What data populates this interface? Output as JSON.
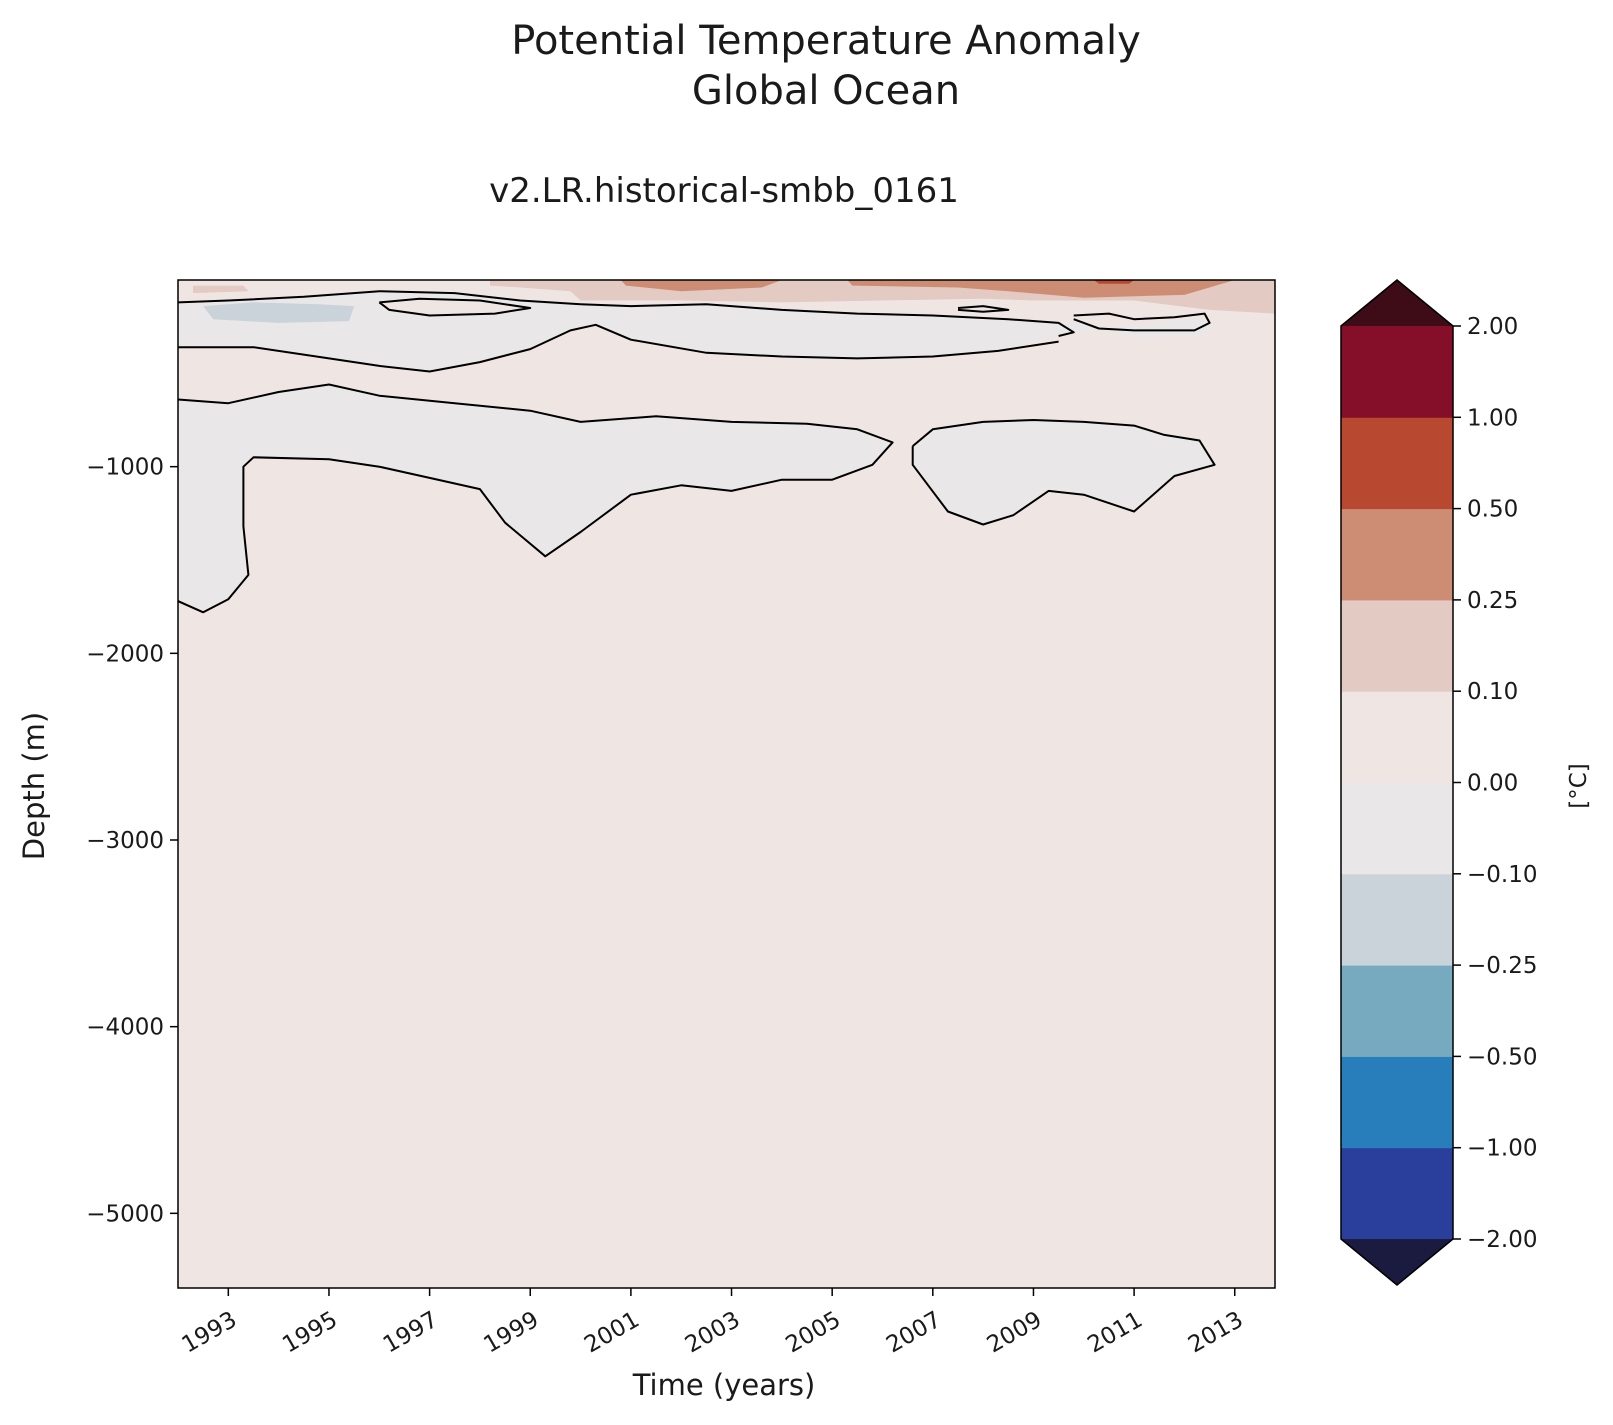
{
  "chart_data": {
    "type": "heatmap",
    "title": "Potential Temperature Anomaly",
    "title_line2": "Global Ocean",
    "subtitle": "v2.LR.historical-smbb_0161",
    "xlabel": "Time (years)",
    "ylabel": "Depth (m)",
    "xlim": [
      1992.0,
      2013.8
    ],
    "ylim": [
      -5400,
      0
    ],
    "x_ticks": [
      1993,
      1995,
      1997,
      1999,
      2001,
      2003,
      2005,
      2007,
      2009,
      2011,
      2013
    ],
    "y_ticks": [
      -1000,
      -2000,
      -3000,
      -4000,
      -5000
    ],
    "x_tick_labels": [
      "1993",
      "1995",
      "1997",
      "1999",
      "2001",
      "2003",
      "2005",
      "2007",
      "2009",
      "2011",
      "2013"
    ],
    "y_tick_labels": [
      "−1000",
      "−2000",
      "−3000",
      "−4000",
      "−5000"
    ],
    "background_level": "0.00 to 0.10",
    "colorbar": {
      "label": "[°C]",
      "extend": "both",
      "levels": [
        -2.0,
        -1.0,
        -0.5,
        -0.25,
        -0.1,
        0.0,
        0.1,
        0.25,
        0.5,
        1.0,
        2.0
      ],
      "tick_labels": [
        "−2.00",
        "−1.00",
        "−0.50",
        "−0.25",
        "−0.10",
        "0.00",
        "0.10",
        "0.25",
        "0.50",
        "1.00",
        "2.00"
      ],
      "colors": [
        "#2a3f9b",
        "#287ebb",
        "#78aabf",
        "#c9d3d9",
        "#e9e7e7",
        "#efe6e4",
        "#e3cac3",
        "#cd8d75",
        "#b84930",
        "#850f28"
      ],
      "under_color": "#1b1b40",
      "over_color": "#3d0c16"
    },
    "regions": [
      {
        "name": "negative anomaly (-0.10 to 0.00) upper band",
        "fill": "#e9e7e7",
        "points": [
          [
            1992.0,
            -120
          ],
          [
            1993.0,
            -110
          ],
          [
            1994.5,
            -90
          ],
          [
            1996.0,
            -60
          ],
          [
            1997.5,
            -70
          ],
          [
            1998.8,
            -110
          ],
          [
            2000.0,
            -130
          ],
          [
            2001.0,
            -140
          ],
          [
            2002.5,
            -130
          ],
          [
            2004.0,
            -160
          ],
          [
            2005.5,
            -180
          ],
          [
            2007.0,
            -190
          ],
          [
            2008.5,
            -210
          ],
          [
            2009.8,
            -230
          ],
          [
            2010.5,
            -250
          ],
          [
            2011.5,
            -230
          ],
          [
            2012.3,
            -200
          ],
          [
            2012.6,
            -260
          ],
          [
            2012.3,
            -300
          ],
          [
            2011.0,
            -310
          ],
          [
            2010.3,
            -260
          ],
          [
            2009.5,
            -300
          ],
          [
            2008.3,
            -380
          ],
          [
            2007.0,
            -410
          ],
          [
            2005.5,
            -420
          ],
          [
            2004.0,
            -410
          ],
          [
            2002.5,
            -390
          ],
          [
            2001.0,
            -320
          ],
          [
            2000.3,
            -240
          ],
          [
            1999.8,
            -270
          ],
          [
            1999.0,
            -370
          ],
          [
            1998.0,
            -440
          ],
          [
            1997.0,
            -490
          ],
          [
            1996.0,
            -460
          ],
          [
            1995.0,
            -420
          ],
          [
            1993.5,
            -360
          ],
          [
            1992.0,
            -360
          ]
        ]
      },
      {
        "name": "warm pocket inside upper band",
        "fill": "#efe6e4",
        "points": [
          [
            1996.0,
            -120
          ],
          [
            1996.8,
            -100
          ],
          [
            1998.0,
            -110
          ],
          [
            1999.0,
            -150
          ],
          [
            1998.3,
            -180
          ],
          [
            1997.0,
            -190
          ],
          [
            1996.2,
            -160
          ]
        ]
      },
      {
        "name": "mid-depth negative anomaly west",
        "fill": "#e9e7e7",
        "points": [
          [
            1992.0,
            -640
          ],
          [
            1993.0,
            -660
          ],
          [
            1994.0,
            -600
          ],
          [
            1995.0,
            -560
          ],
          [
            1996.0,
            -620
          ],
          [
            1997.5,
            -660
          ],
          [
            1999.0,
            -700
          ],
          [
            2000.0,
            -760
          ],
          [
            2001.5,
            -730
          ],
          [
            2003.0,
            -760
          ],
          [
            2004.5,
            -770
          ],
          [
            2005.5,
            -800
          ],
          [
            2006.2,
            -870
          ],
          [
            2005.8,
            -990
          ],
          [
            2005.0,
            -1070
          ],
          [
            2004.0,
            -1070
          ],
          [
            2003.0,
            -1130
          ],
          [
            2002.0,
            -1100
          ],
          [
            2001.0,
            -1150
          ],
          [
            2000.0,
            -1350
          ],
          [
            1999.3,
            -1480
          ],
          [
            1998.5,
            -1300
          ],
          [
            1998.0,
            -1120
          ],
          [
            1997.0,
            -1060
          ],
          [
            1996.0,
            -1000
          ],
          [
            1995.0,
            -960
          ],
          [
            1993.5,
            -950
          ],
          [
            1993.3,
            -1000
          ],
          [
            1993.3,
            -1320
          ],
          [
            1993.4,
            -1580
          ],
          [
            1993.0,
            -1710
          ],
          [
            1992.5,
            -1780
          ],
          [
            1992.0,
            -1720
          ]
        ]
      },
      {
        "name": "mid-depth negative anomaly east",
        "fill": "#e9e7e7",
        "points": [
          [
            2006.6,
            -890
          ],
          [
            2007.0,
            -800
          ],
          [
            2008.0,
            -760
          ],
          [
            2009.0,
            -750
          ],
          [
            2010.0,
            -760
          ],
          [
            2011.0,
            -780
          ],
          [
            2011.6,
            -830
          ],
          [
            2012.3,
            -860
          ],
          [
            2012.6,
            -990
          ],
          [
            2011.8,
            -1050
          ],
          [
            2011.0,
            -1240
          ],
          [
            2010.0,
            -1150
          ],
          [
            2009.3,
            -1130
          ],
          [
            2008.6,
            -1260
          ],
          [
            2008.0,
            -1310
          ],
          [
            2007.3,
            -1240
          ],
          [
            2006.6,
            -990
          ]
        ]
      },
      {
        "name": "light warm surface layer",
        "fill": "#e3cac3",
        "points": [
          [
            1998.2,
            0
          ],
          [
            2013.8,
            0
          ],
          [
            2013.8,
            -180
          ],
          [
            2012.5,
            -160
          ],
          [
            2011.0,
            -110
          ],
          [
            2009.0,
            -110
          ],
          [
            2008.0,
            -100
          ],
          [
            2006.0,
            -110
          ],
          [
            2004.0,
            -120
          ],
          [
            2002.0,
            -110
          ],
          [
            2000.0,
            -110
          ],
          [
            1999.8,
            -60
          ],
          [
            1998.8,
            -40
          ],
          [
            1998.2,
            -30
          ]
        ]
      },
      {
        "name": "small warm surface patch",
        "fill": "#e3cac3",
        "points": [
          [
            1992.3,
            -30
          ],
          [
            1993.3,
            -30
          ],
          [
            1993.4,
            -60
          ],
          [
            1992.3,
            -70
          ]
        ]
      },
      {
        "name": "moderate warm surface 2001-2004",
        "fill": "#cd8d75",
        "points": [
          [
            2000.8,
            0
          ],
          [
            2004.0,
            0
          ],
          [
            2003.6,
            -40
          ],
          [
            2002.0,
            -60
          ],
          [
            2000.9,
            -30
          ]
        ]
      },
      {
        "name": "moderate warm surface 2007-2013",
        "fill": "#cd8d75",
        "points": [
          [
            2005.3,
            0
          ],
          [
            2013.0,
            0
          ],
          [
            2012.0,
            -80
          ],
          [
            2010.0,
            -95
          ],
          [
            2008.5,
            -60
          ],
          [
            2007.5,
            -40
          ],
          [
            2005.4,
            -30
          ]
        ]
      },
      {
        "name": "strong warm surface 2010",
        "fill": "#b84930",
        "points": [
          [
            2010.2,
            0
          ],
          [
            2011.0,
            0
          ],
          [
            2010.9,
            -20
          ],
          [
            2010.3,
            -20
          ]
        ]
      },
      {
        "name": "cool patch 1993-1995",
        "fill": "#c9d3d9",
        "points": [
          [
            1992.5,
            -140
          ],
          [
            1993.5,
            -120
          ],
          [
            1994.8,
            -130
          ],
          [
            1995.5,
            -140
          ],
          [
            1995.4,
            -220
          ],
          [
            1994.0,
            -230
          ],
          [
            1992.7,
            -210
          ]
        ]
      }
    ],
    "contours": [
      [
        [
          1992.0,
          -360
        ],
        [
          1993.5,
          -360
        ],
        [
          1995.0,
          -420
        ],
        [
          1996.0,
          -460
        ],
        [
          1997.0,
          -490
        ],
        [
          1998.0,
          -440
        ],
        [
          1999.0,
          -370
        ],
        [
          1999.8,
          -270
        ],
        [
          2000.3,
          -240
        ],
        [
          2001.0,
          -320
        ],
        [
          2002.5,
          -390
        ],
        [
          2004.0,
          -410
        ],
        [
          2005.5,
          -420
        ],
        [
          2007.0,
          -410
        ],
        [
          2008.3,
          -380
        ],
        [
          2009.5,
          -330
        ]
      ],
      [
        [
          1992.0,
          -120
        ],
        [
          1993.0,
          -110
        ],
        [
          1994.5,
          -90
        ],
        [
          1996.0,
          -60
        ],
        [
          1997.5,
          -70
        ],
        [
          1998.8,
          -110
        ],
        [
          2000.0,
          -130
        ]
      ],
      [
        [
          1996.0,
          -120
        ],
        [
          1996.8,
          -100
        ],
        [
          1998.0,
          -110
        ],
        [
          1999.0,
          -150
        ],
        [
          1998.3,
          -180
        ],
        [
          1997.0,
          -190
        ],
        [
          1996.2,
          -160
        ],
        [
          1996.0,
          -120
        ]
      ],
      [
        [
          2000.0,
          -130
        ],
        [
          2001.0,
          -140
        ],
        [
          2002.5,
          -130
        ],
        [
          2004.0,
          -160
        ],
        [
          2005.5,
          -180
        ],
        [
          2007.0,
          -190
        ],
        [
          2008.5,
          -210
        ],
        [
          2009.5,
          -230
        ],
        [
          2009.8,
          -280
        ],
        [
          2009.5,
          -300
        ]
      ],
      [
        [
          2007.5,
          -150
        ],
        [
          2008.0,
          -140
        ],
        [
          2008.5,
          -160
        ],
        [
          2008.0,
          -170
        ],
        [
          2007.5,
          -160
        ]
      ],
      [
        [
          2009.8,
          -190
        ],
        [
          2010.5,
          -180
        ],
        [
          2011.0,
          -210
        ],
        [
          2011.8,
          -200
        ],
        [
          2012.4,
          -180
        ],
        [
          2012.5,
          -230
        ],
        [
          2012.2,
          -270
        ],
        [
          2011.0,
          -270
        ],
        [
          2010.3,
          -260
        ],
        [
          2009.8,
          -210
        ]
      ],
      [
        [
          1992.0,
          -640
        ],
        [
          1993.0,
          -660
        ],
        [
          1994.0,
          -600
        ],
        [
          1995.0,
          -560
        ],
        [
          1996.0,
          -620
        ],
        [
          1997.5,
          -660
        ],
        [
          1999.0,
          -700
        ],
        [
          2000.0,
          -760
        ],
        [
          2001.5,
          -730
        ],
        [
          2003.0,
          -760
        ],
        [
          2004.5,
          -770
        ],
        [
          2005.5,
          -800
        ],
        [
          2006.2,
          -870
        ],
        [
          2005.8,
          -990
        ],
        [
          2005.0,
          -1070
        ],
        [
          2004.0,
          -1070
        ],
        [
          2003.0,
          -1130
        ],
        [
          2002.0,
          -1100
        ],
        [
          2001.0,
          -1150
        ],
        [
          2000.0,
          -1350
        ],
        [
          1999.3,
          -1480
        ],
        [
          1998.5,
          -1300
        ],
        [
          1998.0,
          -1120
        ],
        [
          1997.0,
          -1060
        ],
        [
          1996.0,
          -1000
        ],
        [
          1995.0,
          -960
        ],
        [
          1993.5,
          -950
        ],
        [
          1993.3,
          -1000
        ],
        [
          1993.3,
          -1320
        ],
        [
          1993.4,
          -1580
        ],
        [
          1993.0,
          -1710
        ],
        [
          1992.5,
          -1780
        ],
        [
          1992.0,
          -1720
        ]
      ],
      [
        [
          2006.6,
          -890
        ],
        [
          2007.0,
          -800
        ],
        [
          2008.0,
          -760
        ],
        [
          2009.0,
          -750
        ],
        [
          2010.0,
          -760
        ],
        [
          2011.0,
          -780
        ],
        [
          2011.6,
          -830
        ],
        [
          2012.3,
          -860
        ],
        [
          2012.6,
          -990
        ],
        [
          2011.8,
          -1050
        ],
        [
          2011.0,
          -1240
        ],
        [
          2010.0,
          -1150
        ],
        [
          2009.3,
          -1130
        ],
        [
          2008.6,
          -1260
        ],
        [
          2008.0,
          -1310
        ],
        [
          2007.3,
          -1240
        ],
        [
          2006.6,
          -990
        ],
        [
          2006.6,
          -890
        ]
      ]
    ]
  }
}
